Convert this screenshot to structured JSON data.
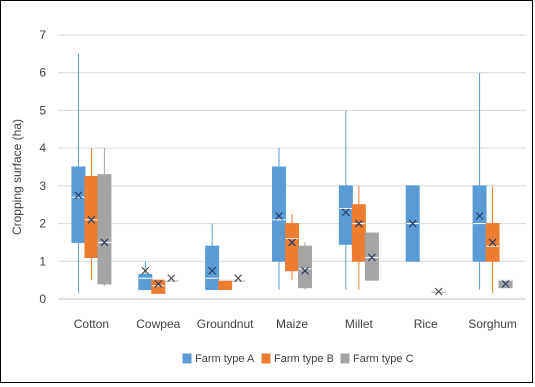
{
  "chart_data": {
    "type": "box",
    "title": "",
    "xlabel": "",
    "ylabel": "Cropping surface (ha)",
    "ylim": [
      0,
      7
    ],
    "yticks": [
      "0",
      "1",
      "2",
      "3",
      "4",
      "5",
      "6",
      "7"
    ],
    "categories": [
      "Cotton",
      "Cowpea",
      "Groundnut",
      "Maize",
      "Millet",
      "Rice",
      "Sorghum"
    ],
    "grid": "horizontal",
    "legend_position": "bottom",
    "series": [
      {
        "name": "Farm type A",
        "color": "#5B9BD5",
        "boxes": [
          {
            "min": 0.15,
            "q1": 1.5,
            "median": 2.7,
            "q3": 3.5,
            "max": 6.5,
            "mean": 2.75
          },
          {
            "min": 0.25,
            "q1": 0.25,
            "median": 0.55,
            "q3": 0.65,
            "max": 1.0,
            "mean": 0.75
          },
          {
            "min": 0.25,
            "q1": 0.25,
            "median": 0.55,
            "q3": 1.4,
            "max": 2.0,
            "mean": 0.75
          },
          {
            "min": 0.25,
            "q1": 1.0,
            "median": 2.1,
            "q3": 3.5,
            "max": 4.0,
            "mean": 2.2
          },
          {
            "min": 0.25,
            "q1": 1.45,
            "median": 2.4,
            "q3": 3.0,
            "max": 5.0,
            "mean": 2.3
          },
          {
            "min": 1.0,
            "q1": 1.0,
            "median": 2.0,
            "q3": 3.0,
            "max": 3.0,
            "mean": 2.0
          },
          {
            "min": 0.25,
            "q1": 1.0,
            "median": 2.0,
            "q3": 3.0,
            "max": 6.0,
            "mean": 2.2
          }
        ]
      },
      {
        "name": "Farm type B",
        "color": "#ED7D31",
        "boxes": [
          {
            "min": 0.5,
            "q1": 1.1,
            "median": 2.1,
            "q3": 3.25,
            "max": 4.0,
            "mean": 2.1
          },
          {
            "min": 0.15,
            "q1": 0.15,
            "median": 0.35,
            "q3": 0.5,
            "max": 0.5,
            "mean": 0.4
          },
          {
            "min": 0.25,
            "q1": 0.25,
            "median": 0.5,
            "q3": 0.5,
            "max": 0.5,
            "mean": null
          },
          {
            "min": 0.5,
            "q1": 0.75,
            "median": 1.6,
            "q3": 2.0,
            "max": 2.25,
            "mean": 1.5
          },
          {
            "min": 0.25,
            "q1": 1.0,
            "median": 2.0,
            "q3": 2.5,
            "max": 3.0,
            "mean": 2.0
          },
          null,
          {
            "min": 0.15,
            "q1": 1.0,
            "median": 1.4,
            "q3": 2.0,
            "max": 3.0,
            "mean": 1.5
          }
        ]
      },
      {
        "name": "Farm type C",
        "color": "#A5A5A5",
        "boxes": [
          {
            "min": 0.35,
            "q1": 0.4,
            "median": 1.5,
            "q3": 3.3,
            "max": 4.0,
            "mean": 1.5
          },
          {
            "min": 0.5,
            "q1": 0.5,
            "median": 0.5,
            "q3": 0.5,
            "max": 0.5,
            "mean": 0.55
          },
          {
            "min": 0.5,
            "q1": 0.5,
            "median": 0.5,
            "q3": 0.5,
            "max": 0.5,
            "mean": 0.55
          },
          {
            "min": 0.25,
            "q1": 0.3,
            "median": 0.8,
            "q3": 1.4,
            "max": 1.5,
            "mean": 0.75
          },
          {
            "min": 0.5,
            "q1": 0.5,
            "median": 1.1,
            "q3": 1.75,
            "max": 1.75,
            "mean": 1.1
          },
          {
            "min": 0.2,
            "q1": 0.2,
            "median": 0.2,
            "q3": 0.2,
            "max": 0.2,
            "mean": 0.2
          },
          {
            "min": 0.3,
            "q1": 0.3,
            "median": 0.5,
            "q3": 0.5,
            "max": 0.5,
            "mean": 0.4
          }
        ]
      }
    ]
  }
}
